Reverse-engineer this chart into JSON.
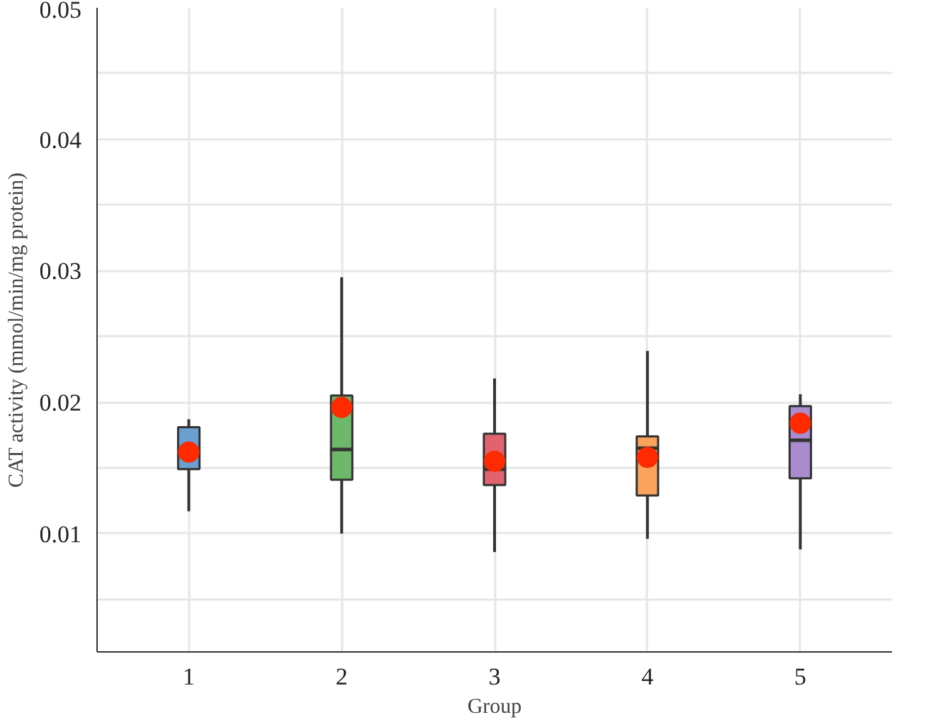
{
  "chart_data": {
    "type": "box",
    "ylabel": "CAT activity (mmol/min/mg protein)",
    "xlabel": "Group",
    "categories": [
      "1",
      "2",
      "3",
      "4",
      "5"
    ],
    "colors": [
      "#6a9fcf",
      "#6db86a",
      "#e0636e",
      "#f9a35c",
      "#a98bce"
    ],
    "boxes": [
      {
        "low": 0.0117,
        "q1": 0.0149,
        "median": 0.0162,
        "q3": 0.0181,
        "high": 0.0187,
        "mean": 0.0162
      },
      {
        "low": 0.01,
        "q1": 0.0141,
        "median": 0.0164,
        "q3": 0.0205,
        "high": 0.0295,
        "mean": 0.0196
      },
      {
        "low": 0.0086,
        "q1": 0.0137,
        "median": 0.0149,
        "q3": 0.0176,
        "high": 0.0218,
        "mean": 0.0155
      },
      {
        "low": 0.0096,
        "q1": 0.0129,
        "median": 0.0165,
        "q3": 0.0174,
        "high": 0.0239,
        "mean": 0.0158
      },
      {
        "low": 0.0088,
        "q1": 0.0142,
        "median": 0.0171,
        "q3": 0.0197,
        "high": 0.0206,
        "mean": 0.0184
      }
    ],
    "ylim": [
      0.001,
      0.05
    ],
    "yticks": [
      {
        "value": 0.005,
        "label": null
      },
      0.01,
      {
        "value": 0.015,
        "label": null
      },
      0.02,
      {
        "value": 0.025,
        "label": null
      },
      0.03,
      {
        "value": 0.035,
        "label": null
      },
      0.04,
      {
        "value": 0.045,
        "label": null
      },
      0.05
    ],
    "grid": true
  }
}
